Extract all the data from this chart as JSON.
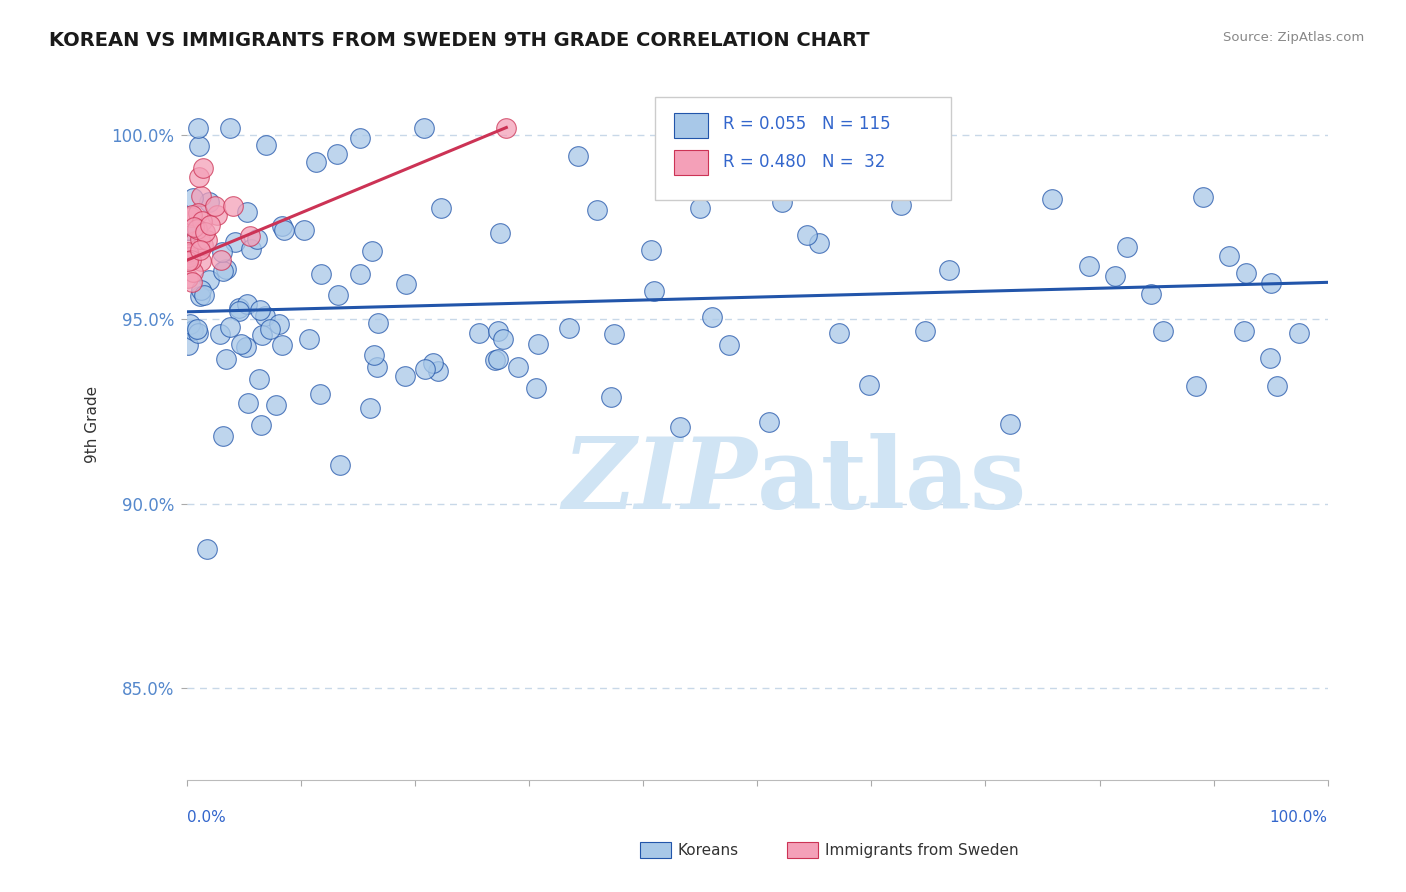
{
  "title": "KOREAN VS IMMIGRANTS FROM SWEDEN 9TH GRADE CORRELATION CHART",
  "source": "Source: ZipAtlas.com",
  "ylabel": "9th Grade",
  "y_tick_labels": [
    "85.0%",
    "90.0%",
    "95.0%",
    "100.0%"
  ],
  "y_tick_values": [
    0.85,
    0.9,
    0.95,
    1.0
  ],
  "x_range": [
    0.0,
    1.0
  ],
  "y_range": [
    0.825,
    1.018
  ],
  "blue_color": "#a8c8e8",
  "pink_color": "#f4a0b8",
  "blue_line_color": "#2255aa",
  "pink_line_color": "#cc3355",
  "legend_text_color": "#3366cc",
  "ytick_color": "#5588cc",
  "title_color": "#1a1a1a",
  "watermark_color": "#d0e4f4",
  "grid_color": "#c8d8e8",
  "background_color": "#ffffff",
  "blue_trend_x": [
    0.0,
    1.0
  ],
  "blue_trend_y": [
    0.952,
    0.96
  ],
  "pink_trend_x": [
    0.0,
    0.28
  ],
  "pink_trend_y": [
    0.966,
    1.002
  ]
}
